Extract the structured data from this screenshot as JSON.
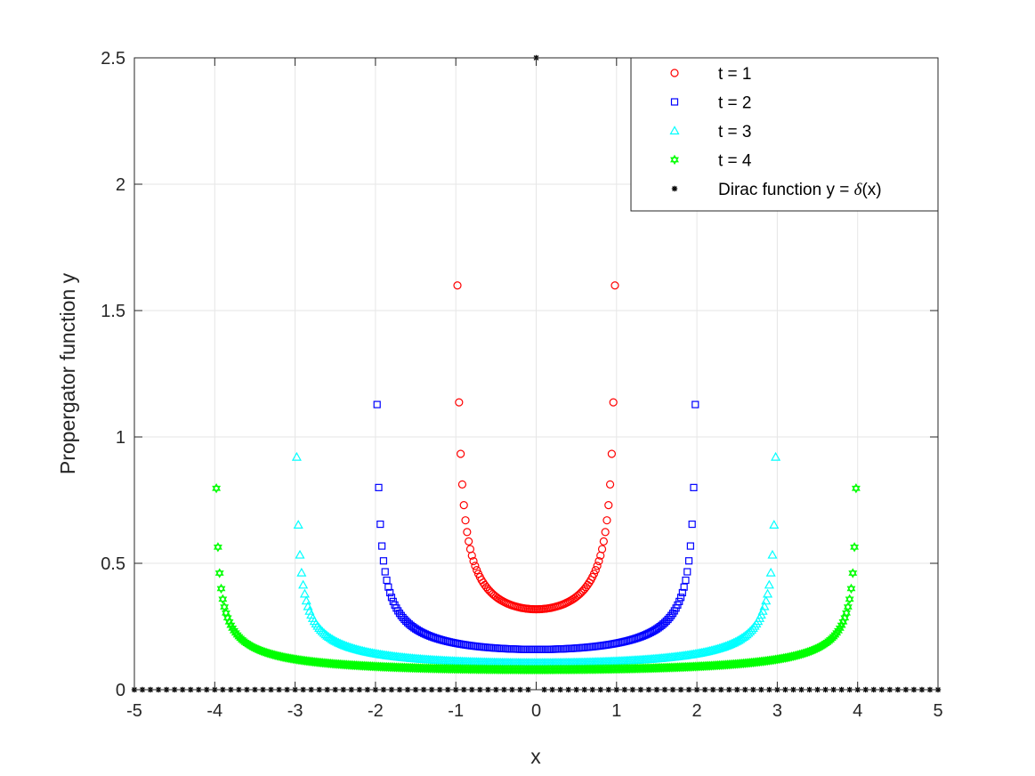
{
  "chart_data": {
    "type": "scatter",
    "title": "",
    "xlabel": "x",
    "ylabel": "Propergator function y",
    "xlim": [
      -5,
      5
    ],
    "ylim": [
      0,
      2.5
    ],
    "xticks": [
      "-5",
      "-4",
      "-3",
      "-2",
      "-1",
      "0",
      "1",
      "2",
      "3",
      "4",
      "5"
    ],
    "yticks": [
      "0",
      "0.5",
      "1",
      "1.5",
      "2",
      "2.5"
    ],
    "grid": true,
    "legend_position": "top-right",
    "series": [
      {
        "name": "t = 1",
        "color": "#ff0000",
        "marker": "circle",
        "t": 1,
        "formula": "1/(pi*sqrt(t^2 - x^2)) for |x| < t"
      },
      {
        "name": "t = 2",
        "color": "#0000ff",
        "marker": "square",
        "t": 2,
        "formula": "1/(pi*sqrt(t^2 - x^2)) for |x| < t"
      },
      {
        "name": "t = 3",
        "color": "#00ffff",
        "marker": "triangle",
        "t": 3,
        "formula": "1/(pi*sqrt(t^2 - x^2)) for |x| < t"
      },
      {
        "name": "t = 4",
        "color": "#00ff00",
        "marker": "hexagram",
        "t": 4,
        "formula": "1/(pi*sqrt(t^2 - x^2)) for |x| < t"
      },
      {
        "name": "Dirac function y = δ(x)",
        "name_prefix": "Dirac function y = ",
        "name_delta": "δ",
        "name_suffix": "(x)",
        "color": "#000000",
        "marker": "asterisk",
        "peak_x": 0,
        "peak_y": 2.5,
        "baseline_y": 0
      }
    ]
  }
}
